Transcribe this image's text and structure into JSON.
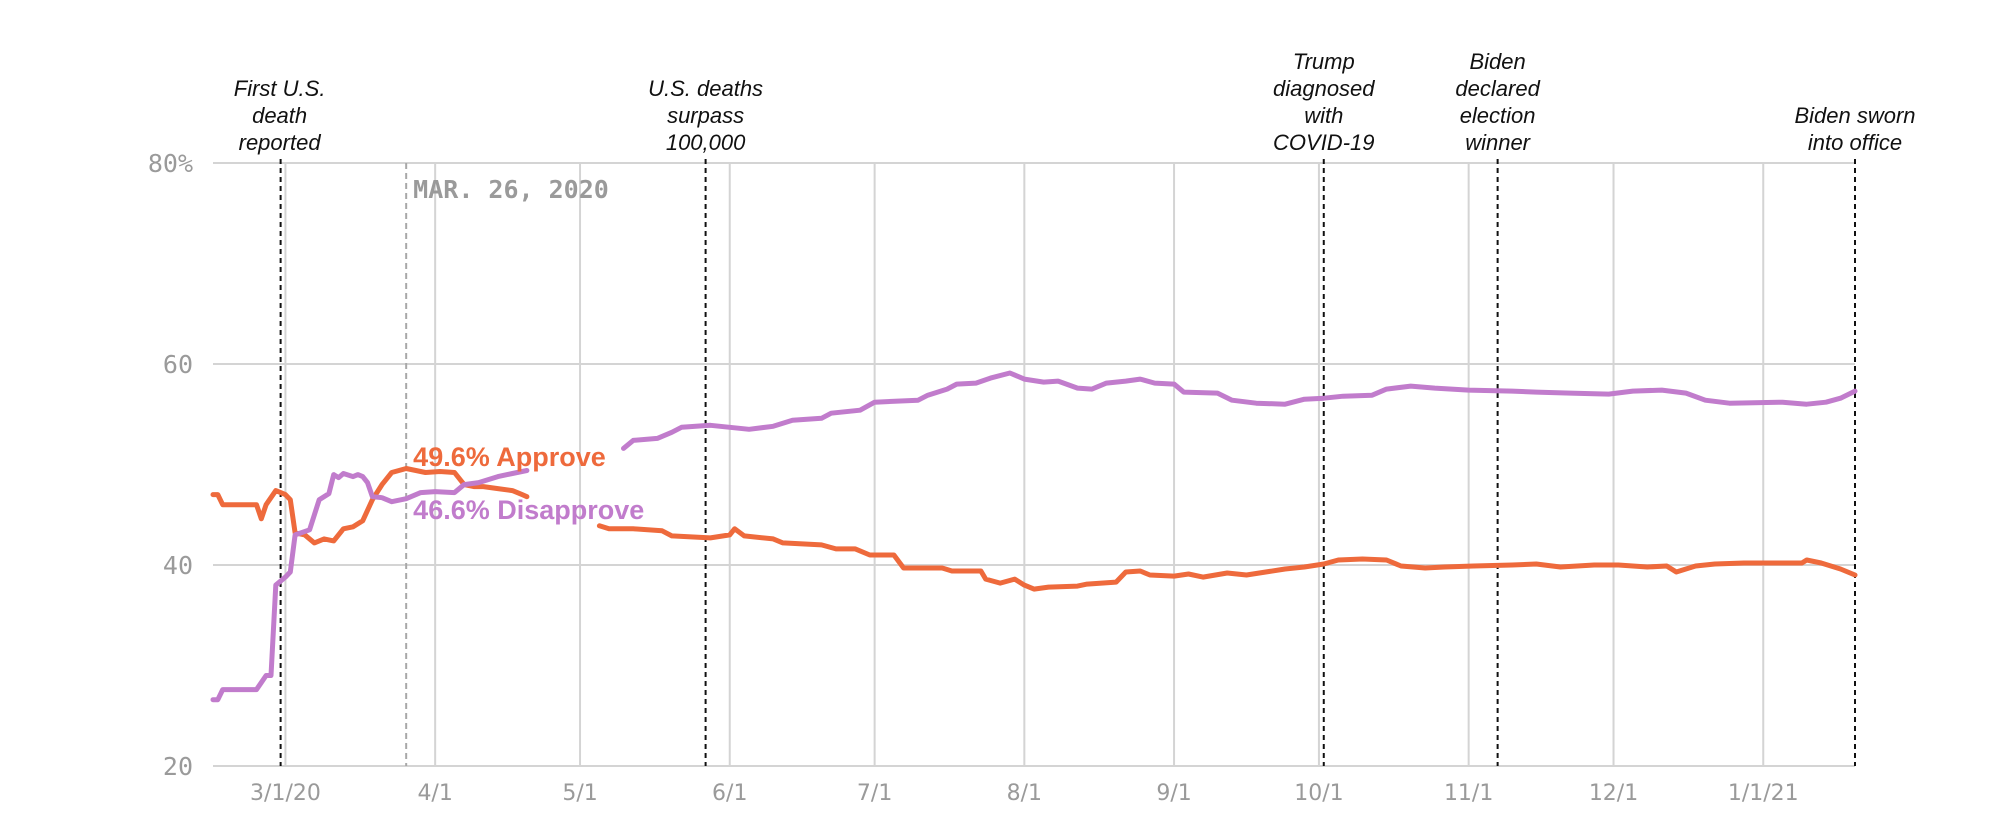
{
  "chart_data": {
    "type": "line",
    "x_start": "2020-02-15",
    "x_end": "2021-01-20",
    "ylim": [
      20,
      80
    ],
    "y_ticks": [
      "80%",
      "60",
      "40",
      "20"
    ],
    "x_ticks": [
      "3/1/20",
      "4/1",
      "5/1",
      "6/1",
      "7/1",
      "8/1",
      "9/1",
      "10/1",
      "11/1",
      "12/1",
      "1/1/21"
    ],
    "grid": true,
    "hover": {
      "date_label": "MAR. 26, 2020",
      "date": "2020-03-26"
    },
    "events": [
      {
        "date": "2020-02-29",
        "lines": [
          "First U.S.",
          "death",
          "reported"
        ]
      },
      {
        "date": "2020-05-27",
        "lines": [
          "U.S. deaths",
          "surpass",
          "100,000"
        ]
      },
      {
        "date": "2020-10-02",
        "lines": [
          "Trump",
          "diagnosed",
          "with",
          "COVID-19"
        ]
      },
      {
        "date": "2020-11-07",
        "lines": [
          "Biden",
          "declared",
          "election",
          "winner"
        ]
      },
      {
        "date": "2021-01-20",
        "lines": [
          "Biden sworn",
          "into office"
        ]
      }
    ],
    "series": [
      {
        "name": "Approve",
        "color": "#ee6a3c",
        "label": "49.6% Approve",
        "points": [
          [
            "2020-02-15",
            47.0
          ],
          [
            "2020-02-16",
            47.0
          ],
          [
            "2020-02-17",
            46.0
          ],
          [
            "2020-02-20",
            46.0
          ],
          [
            "2020-02-24",
            46.0
          ],
          [
            "2020-02-25",
            44.6
          ],
          [
            "2020-02-26",
            46.0
          ],
          [
            "2020-02-28",
            47.4
          ],
          [
            "2020-03-01",
            47.0
          ],
          [
            "2020-03-02",
            46.5
          ],
          [
            "2020-03-03",
            43.2
          ],
          [
            "2020-03-05",
            43.0
          ],
          [
            "2020-03-07",
            42.2
          ],
          [
            "2020-03-09",
            42.6
          ],
          [
            "2020-03-11",
            42.4
          ],
          [
            "2020-03-13",
            43.6
          ],
          [
            "2020-03-15",
            43.8
          ],
          [
            "2020-03-17",
            44.4
          ],
          [
            "2020-03-19",
            46.5
          ],
          [
            "2020-03-21",
            48.0
          ],
          [
            "2020-03-23",
            49.2
          ],
          [
            "2020-03-26",
            49.6
          ],
          [
            "2020-03-30",
            49.2
          ],
          [
            "2020-04-02",
            49.3
          ],
          [
            "2020-04-05",
            49.2
          ],
          [
            "2020-04-07",
            48.0
          ],
          [
            "2020-04-09",
            47.8
          ],
          [
            "2020-04-11",
            47.8
          ],
          [
            "2020-04-14",
            47.6
          ],
          [
            "2020-04-17",
            47.4
          ],
          [
            "2020-04-19",
            47.0
          ],
          [
            "2020-04-20",
            46.8
          ]
        ]
      },
      {
        "name": "Approve-late",
        "color": "#ee6a3c",
        "points": [
          [
            "2020-05-05",
            43.9
          ],
          [
            "2020-05-07",
            43.6
          ],
          [
            "2020-05-12",
            43.6
          ],
          [
            "2020-05-18",
            43.4
          ],
          [
            "2020-05-20",
            42.9
          ],
          [
            "2020-05-28",
            42.7
          ],
          [
            "2020-06-01",
            43.0
          ],
          [
            "2020-06-02",
            43.6
          ],
          [
            "2020-06-04",
            42.9
          ],
          [
            "2020-06-10",
            42.6
          ],
          [
            "2020-06-12",
            42.2
          ],
          [
            "2020-06-20",
            42.0
          ],
          [
            "2020-06-23",
            41.6
          ],
          [
            "2020-06-27",
            41.6
          ],
          [
            "2020-06-30",
            41.0
          ],
          [
            "2020-07-05",
            41.0
          ],
          [
            "2020-07-07",
            39.7
          ],
          [
            "2020-07-15",
            39.7
          ],
          [
            "2020-07-17",
            39.4
          ],
          [
            "2020-07-23",
            39.4
          ],
          [
            "2020-07-24",
            38.6
          ],
          [
            "2020-07-27",
            38.2
          ],
          [
            "2020-07-30",
            38.6
          ],
          [
            "2020-08-01",
            38.0
          ],
          [
            "2020-08-03",
            37.6
          ],
          [
            "2020-08-06",
            37.8
          ],
          [
            "2020-08-12",
            37.9
          ],
          [
            "2020-08-14",
            38.1
          ],
          [
            "2020-08-20",
            38.3
          ],
          [
            "2020-08-22",
            39.3
          ],
          [
            "2020-08-25",
            39.4
          ],
          [
            "2020-08-27",
            39.0
          ],
          [
            "2020-09-01",
            38.9
          ],
          [
            "2020-09-04",
            39.1
          ],
          [
            "2020-09-07",
            38.8
          ],
          [
            "2020-09-12",
            39.2
          ],
          [
            "2020-09-16",
            39.0
          ],
          [
            "2020-09-24",
            39.6
          ],
          [
            "2020-09-28",
            39.8
          ],
          [
            "2020-10-02",
            40.1
          ],
          [
            "2020-10-05",
            40.5
          ],
          [
            "2020-10-10",
            40.6
          ],
          [
            "2020-10-15",
            40.5
          ],
          [
            "2020-10-18",
            39.9
          ],
          [
            "2020-10-23",
            39.7
          ],
          [
            "2020-10-27",
            39.8
          ],
          [
            "2020-11-02",
            39.9
          ],
          [
            "2020-11-10",
            40.0
          ],
          [
            "2020-11-15",
            40.1
          ],
          [
            "2020-11-20",
            39.8
          ],
          [
            "2020-11-27",
            40.0
          ],
          [
            "2020-12-02",
            40.0
          ],
          [
            "2020-12-08",
            39.8
          ],
          [
            "2020-12-12",
            39.9
          ],
          [
            "2020-12-14",
            39.3
          ],
          [
            "2020-12-18",
            39.9
          ],
          [
            "2020-12-22",
            40.1
          ],
          [
            "2020-12-28",
            40.2
          ],
          [
            "2021-01-04",
            40.2
          ],
          [
            "2021-01-09",
            40.2
          ],
          [
            "2021-01-10",
            40.5
          ],
          [
            "2021-01-13",
            40.2
          ],
          [
            "2021-01-17",
            39.6
          ],
          [
            "2021-01-20",
            39.0
          ]
        ]
      },
      {
        "name": "Disapprove",
        "color": "#c17ccc",
        "label": "46.6% Disapprove",
        "points": [
          [
            "2020-02-15",
            26.6
          ],
          [
            "2020-02-16",
            26.6
          ],
          [
            "2020-02-17",
            27.6
          ],
          [
            "2020-02-24",
            27.6
          ],
          [
            "2020-02-25",
            28.3
          ],
          [
            "2020-02-26",
            29.0
          ],
          [
            "2020-02-27",
            29.0
          ],
          [
            "2020-02-28",
            38.0
          ],
          [
            "2020-03-01",
            38.8
          ],
          [
            "2020-03-02",
            39.3
          ],
          [
            "2020-03-03",
            43.0
          ],
          [
            "2020-03-06",
            43.5
          ],
          [
            "2020-03-08",
            46.5
          ],
          [
            "2020-03-10",
            47.1
          ],
          [
            "2020-03-11",
            49.0
          ],
          [
            "2020-03-12",
            48.7
          ],
          [
            "2020-03-13",
            49.1
          ],
          [
            "2020-03-15",
            48.8
          ],
          [
            "2020-03-16",
            49.0
          ],
          [
            "2020-03-17",
            48.8
          ],
          [
            "2020-03-18",
            48.2
          ],
          [
            "2020-03-19",
            46.8
          ],
          [
            "2020-03-21",
            46.7
          ],
          [
            "2020-03-23",
            46.3
          ],
          [
            "2020-03-26",
            46.6
          ],
          [
            "2020-03-29",
            47.2
          ],
          [
            "2020-04-01",
            47.3
          ],
          [
            "2020-04-05",
            47.2
          ],
          [
            "2020-04-07",
            48.0
          ],
          [
            "2020-04-10",
            48.2
          ],
          [
            "2020-04-14",
            48.8
          ],
          [
            "2020-04-17",
            49.1
          ],
          [
            "2020-04-20",
            49.4
          ]
        ]
      },
      {
        "name": "Disapprove-late",
        "color": "#c17ccc",
        "points": [
          [
            "2020-05-10",
            51.6
          ],
          [
            "2020-05-12",
            52.4
          ],
          [
            "2020-05-17",
            52.6
          ],
          [
            "2020-05-20",
            53.2
          ],
          [
            "2020-05-22",
            53.7
          ],
          [
            "2020-05-28",
            53.9
          ],
          [
            "2020-06-05",
            53.5
          ],
          [
            "2020-06-10",
            53.8
          ],
          [
            "2020-06-14",
            54.4
          ],
          [
            "2020-06-20",
            54.6
          ],
          [
            "2020-06-22",
            55.1
          ],
          [
            "2020-06-28",
            55.4
          ],
          [
            "2020-07-01",
            56.2
          ],
          [
            "2020-07-10",
            56.4
          ],
          [
            "2020-07-12",
            56.9
          ],
          [
            "2020-07-16",
            57.5
          ],
          [
            "2020-07-18",
            58.0
          ],
          [
            "2020-07-22",
            58.1
          ],
          [
            "2020-07-25",
            58.6
          ],
          [
            "2020-07-29",
            59.1
          ],
          [
            "2020-08-01",
            58.5
          ],
          [
            "2020-08-05",
            58.2
          ],
          [
            "2020-08-08",
            58.3
          ],
          [
            "2020-08-12",
            57.6
          ],
          [
            "2020-08-15",
            57.5
          ],
          [
            "2020-08-18",
            58.1
          ],
          [
            "2020-08-22",
            58.3
          ],
          [
            "2020-08-25",
            58.5
          ],
          [
            "2020-08-28",
            58.1
          ],
          [
            "2020-09-01",
            58.0
          ],
          [
            "2020-09-03",
            57.2
          ],
          [
            "2020-09-10",
            57.1
          ],
          [
            "2020-09-13",
            56.4
          ],
          [
            "2020-09-18",
            56.1
          ],
          [
            "2020-09-24",
            56.0
          ],
          [
            "2020-09-28",
            56.5
          ],
          [
            "2020-10-02",
            56.6
          ],
          [
            "2020-10-06",
            56.8
          ],
          [
            "2020-10-12",
            56.9
          ],
          [
            "2020-10-15",
            57.5
          ],
          [
            "2020-10-20",
            57.8
          ],
          [
            "2020-10-25",
            57.6
          ],
          [
            "2020-11-01",
            57.4
          ],
          [
            "2020-11-10",
            57.3
          ],
          [
            "2020-11-15",
            57.2
          ],
          [
            "2020-11-22",
            57.1
          ],
          [
            "2020-11-30",
            57.0
          ],
          [
            "2020-12-05",
            57.3
          ],
          [
            "2020-12-11",
            57.4
          ],
          [
            "2020-12-16",
            57.1
          ],
          [
            "2020-12-20",
            56.4
          ],
          [
            "2020-12-25",
            56.1
          ],
          [
            "2021-01-05",
            56.2
          ],
          [
            "2021-01-10",
            56.0
          ],
          [
            "2021-01-14",
            56.2
          ],
          [
            "2021-01-17",
            56.6
          ],
          [
            "2021-01-20",
            57.3
          ]
        ]
      }
    ]
  }
}
